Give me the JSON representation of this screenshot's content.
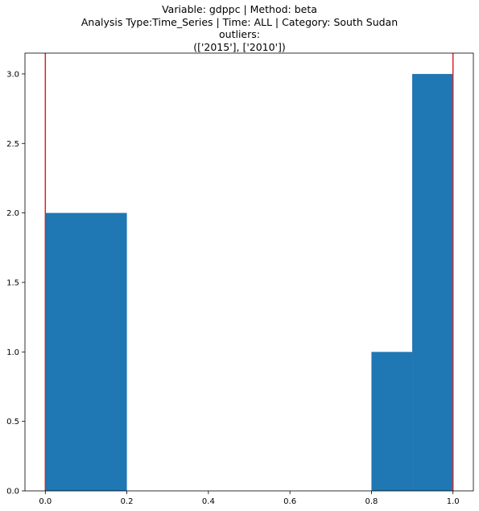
{
  "chart_data": {
    "type": "bar",
    "title_lines": [
      "Variable: gdppc | Method: beta",
      "Analysis Type:Time_Series | Time: ALL | Category: South Sudan",
      "outliers:",
      "(['2015'], ['2010'])"
    ],
    "xlabel": "",
    "ylabel": "",
    "xlim": [
      -0.05,
      1.05
    ],
    "ylim": [
      0,
      3.15
    ],
    "x_ticks": [
      0.0,
      0.2,
      0.4,
      0.6,
      0.8,
      1.0
    ],
    "x_tick_labels": [
      "0.0",
      "0.2",
      "0.4",
      "0.6",
      "0.8",
      "1.0"
    ],
    "y_ticks": [
      0.0,
      0.5,
      1.0,
      1.5,
      2.0,
      2.5,
      3.0
    ],
    "y_tick_labels": [
      "0.0",
      "0.5",
      "1.0",
      "1.5",
      "2.0",
      "2.5",
      "3.0"
    ],
    "bins": [
      {
        "x0": 0.0,
        "x1": 0.2,
        "value": 2
      },
      {
        "x0": 0.8,
        "x1": 0.9,
        "value": 1
      },
      {
        "x0": 0.9,
        "x1": 1.0,
        "value": 3
      }
    ],
    "vlines": [
      0.0,
      1.0
    ],
    "bar_color": "#1f77b4",
    "vline_color": "#d62728",
    "grid": false
  }
}
